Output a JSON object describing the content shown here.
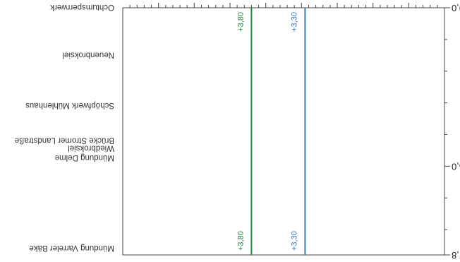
{
  "chart_data": {
    "type": "line",
    "orientation": "rotated-180",
    "title": "",
    "xlabel": "",
    "ylabel": "",
    "y_axis": {
      "ylim": [
        0.0,
        7.8
      ],
      "tick_labels": [
        "0,0",
        "5,0",
        "7,8"
      ],
      "tick_values": [
        0.0,
        5.0,
        7.8
      ],
      "minor_ticks": [
        1.0,
        2.0,
        3.0,
        4.0,
        6.0,
        7.0
      ]
    },
    "locations": [
      {
        "name": "Ochtumsperrwerk",
        "km": 0.0
      },
      {
        "name": "Neuenbroksiel",
        "km": 1.5
      },
      {
        "name": "Schöpfwerk Mühlenhaus",
        "km": 3.1
      },
      {
        "name": "Brücke Stromer Landstraße",
        "km": 4.2
      },
      {
        "name": "Wiedbroksiel",
        "km": 4.45
      },
      {
        "name": "Mündung Delme",
        "km": 4.75
      },
      {
        "name": "Mündung Varreler Bäke",
        "km": 7.6
      }
    ],
    "series": [
      {
        "label_top": "+3,80",
        "label_bottom": "+3,80",
        "value": 3.8,
        "color": "#1e8a3c"
      },
      {
        "label_top": "+3,30",
        "label_bottom": "+3,30",
        "value": 3.3,
        "color": "#3a7abf"
      }
    ],
    "x_axis": {
      "minor_ticks": 44,
      "major_every": 5
    },
    "grid": false,
    "legend": "none"
  }
}
